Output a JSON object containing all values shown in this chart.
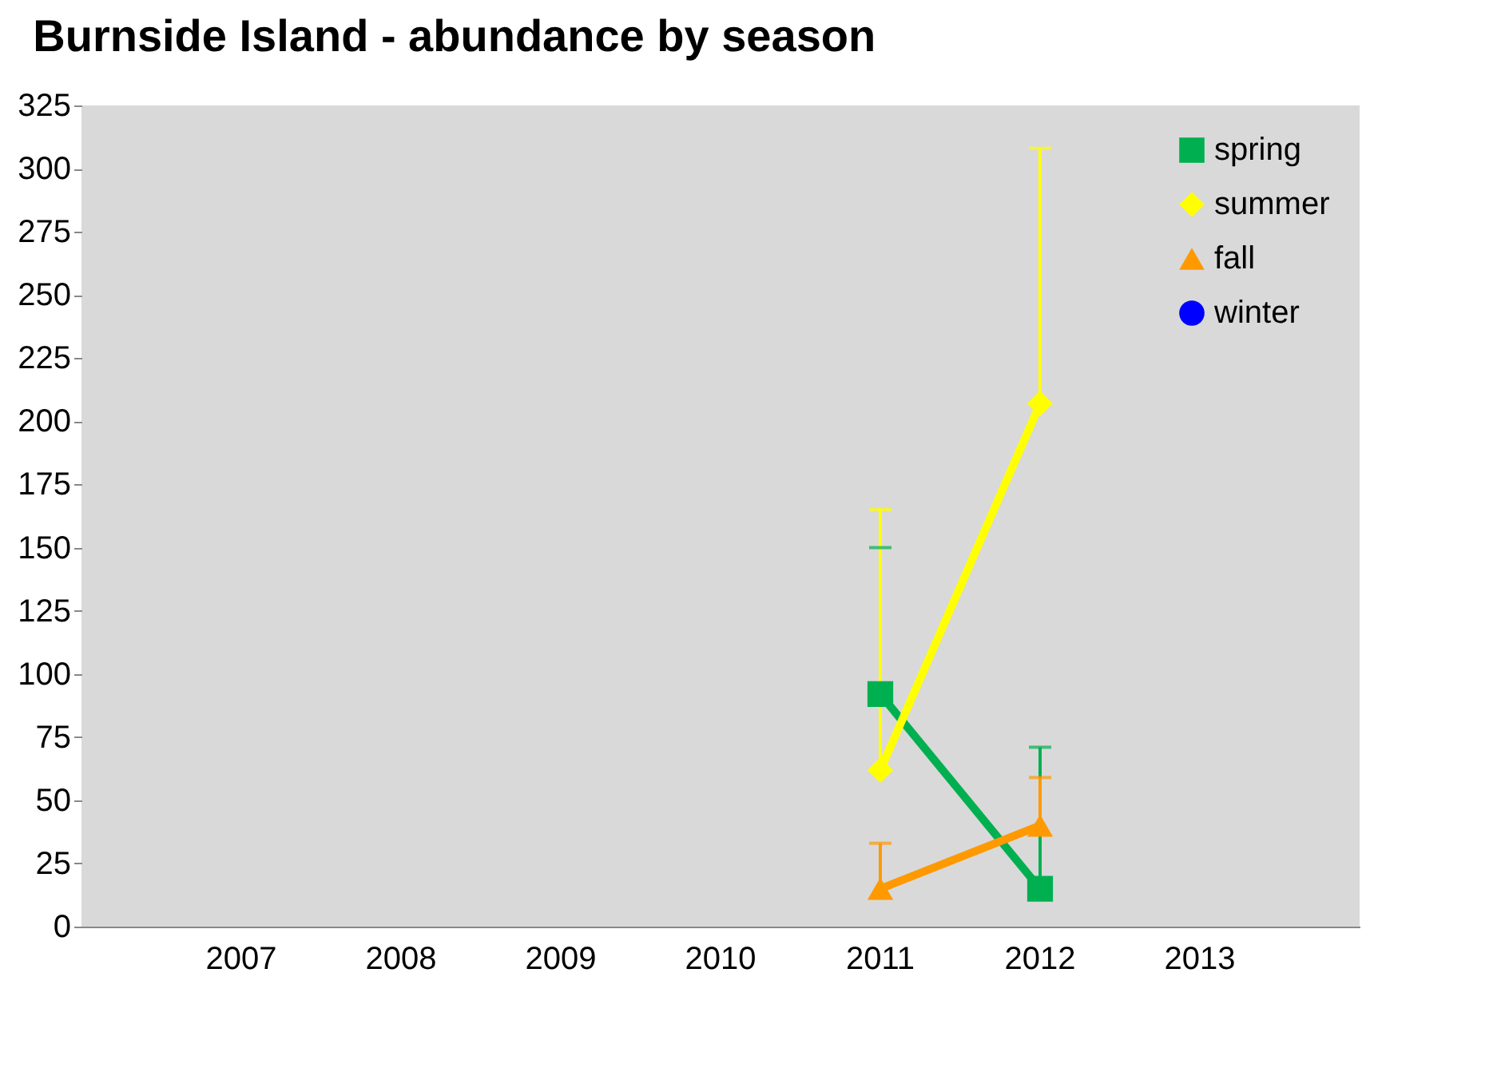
{
  "chart_data": {
    "type": "line",
    "title": "Burnside Island  - abundance by season",
    "categories": [
      "2007",
      "2008",
      "2009",
      "2010",
      "2011",
      "2012",
      "2013"
    ],
    "series": [
      {
        "name": "spring",
        "color": "#00b050",
        "marker": "square",
        "values": [
          null,
          null,
          null,
          null,
          92,
          15,
          null
        ],
        "errors": [
          null,
          null,
          null,
          null,
          [
            92,
            150
          ],
          [
            15,
            71
          ],
          null
        ]
      },
      {
        "name": "summer",
        "color": "#ffff00",
        "marker": "diamond",
        "values": [
          null,
          null,
          null,
          null,
          62,
          207,
          null
        ],
        "errors": [
          null,
          null,
          null,
          null,
          [
            62,
            165
          ],
          [
            207,
            308
          ],
          null
        ]
      },
      {
        "name": "fall",
        "color": "#ff9900",
        "marker": "triangle",
        "values": [
          null,
          null,
          null,
          null,
          15,
          40,
          null
        ],
        "errors": [
          null,
          null,
          null,
          null,
          [
            15,
            33
          ],
          [
            40,
            59
          ],
          null
        ]
      },
      {
        "name": "winter",
        "color": "#0000ff",
        "marker": "circle",
        "values": [
          null,
          null,
          null,
          null,
          null,
          null,
          null
        ]
      }
    ],
    "ylim": [
      0,
      325
    ],
    "yticks": [
      0,
      25,
      50,
      75,
      100,
      125,
      150,
      175,
      200,
      225,
      250,
      275,
      300,
      325
    ],
    "grid": false,
    "legend": "top right"
  }
}
